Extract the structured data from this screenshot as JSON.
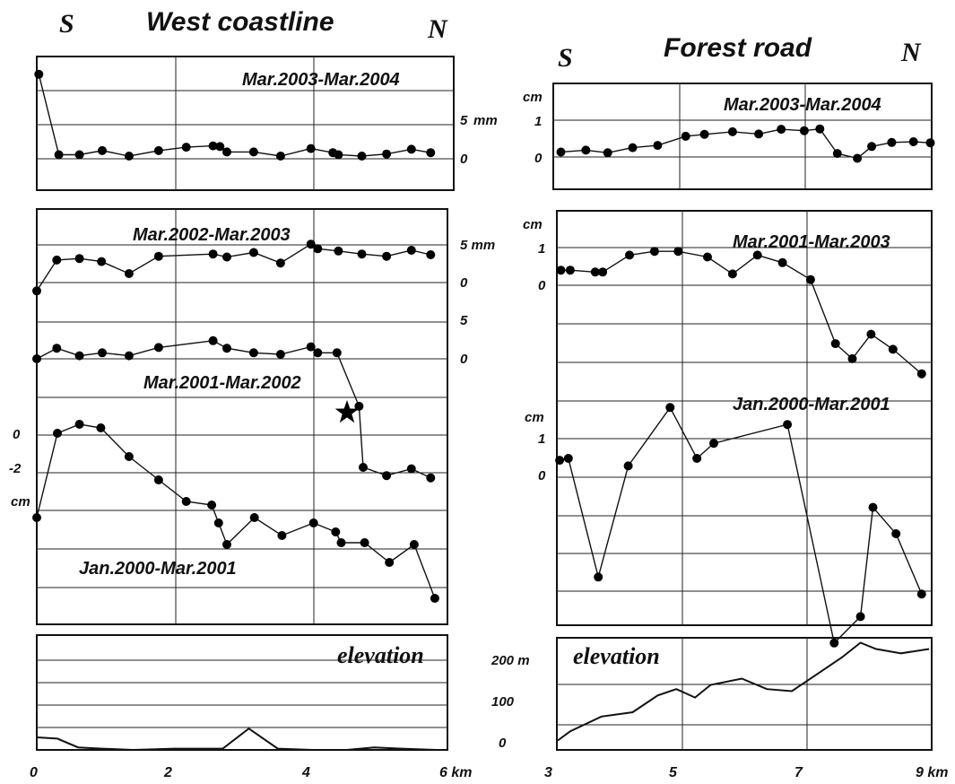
{
  "panels": {
    "left_title": "West coastline",
    "right_title": "Forest road",
    "dir_s": "S",
    "dir_n": "N"
  },
  "left_ticks": {
    "top_5": "5",
    "top_unit": "mm",
    "top_0": "0",
    "s1_5": "5 mm",
    "s1_0": "0",
    "s2_5": "5",
    "s2_0": "0",
    "s3_0": "0",
    "s3_m2": "-2",
    "s3_unit": "cm"
  },
  "right_ticks": {
    "top_unit": "cm",
    "top_1": "1",
    "top_0": "0",
    "m_unit": "cm",
    "m_1": "1",
    "m_0": "0",
    "l_unit": "cm",
    "l_1": "1",
    "l_0": "0",
    "e_200": "200 m",
    "e_100": "100",
    "e_0": "0"
  },
  "x_axes": {
    "left": [
      "0",
      "2",
      "4",
      "6 km"
    ],
    "right": [
      "3",
      "5",
      "7",
      "9 km"
    ]
  },
  "chart_data": [
    {
      "type": "line",
      "title": "West coastline",
      "xlabel": "km",
      "xlim": [
        0,
        6
      ],
      "subplots": [
        {
          "label": "Mar.2003-Mar.2004",
          "ylabel": "mm",
          "y_ticks": [
            "5",
            "0"
          ],
          "x": [
            0.03,
            0.32,
            0.62,
            0.95,
            1.34,
            1.77,
            2.17,
            2.56,
            2.66,
            2.76,
            3.15,
            3.54,
            3.98,
            4.3,
            4.38,
            4.72,
            5.08,
            5.44,
            5.72
          ],
          "y": [
            12.0,
            0.2,
            0.2,
            0.8,
            0.0,
            0.8,
            1.3,
            1.5,
            1.4,
            0.6,
            0.6,
            0.0,
            1.1,
            0.5,
            0.2,
            0.0,
            0.3,
            1.0,
            0.5
          ]
        },
        {
          "label": "Mar.2002-Mar.2003",
          "ylabel": "mm",
          "y_ticks": [
            "5",
            "0"
          ],
          "x": [
            0.0,
            0.29,
            0.62,
            0.94,
            1.34,
            1.77,
            2.56,
            2.76,
            3.15,
            3.54,
            3.98,
            4.08,
            4.38,
            4.72,
            5.08,
            5.44,
            5.72
          ],
          "y": [
            -2.3,
            1.8,
            2.0,
            1.6,
            0.0,
            2.3,
            2.6,
            2.2,
            2.8,
            1.4,
            3.9,
            3.3,
            3.0,
            2.6,
            2.3,
            3.1,
            2.5
          ]
        },
        {
          "label": "Mar.2001-Mar.2002",
          "ylabel": "mm",
          "y_ticks": [
            "5",
            "0"
          ],
          "x": [
            0.0,
            0.29,
            0.62,
            0.95,
            1.34,
            1.77,
            2.56,
            2.76,
            3.15,
            3.54,
            3.98,
            4.08,
            4.36,
            4.68,
            4.74,
            5.08,
            5.44,
            5.72
          ],
          "y": [
            0.0,
            1.4,
            0.4,
            0.8,
            0.4,
            1.5,
            2.4,
            1.4,
            0.8,
            0.6,
            1.6,
            0.8,
            0.8,
            -6.3,
            -14.4,
            -15.5,
            -14.6,
            -15.8
          ],
          "annotation": "star marker at about 4.55 km"
        },
        {
          "label": "Jan.2000-Mar.2001",
          "ylabel": "cm",
          "y_ticks": [
            "0",
            "-2"
          ],
          "x": [
            0.0,
            0.3,
            0.62,
            0.93,
            1.34,
            1.77,
            2.17,
            2.54,
            2.64,
            2.76,
            3.16,
            3.56,
            4.02,
            4.34,
            4.42,
            4.76,
            5.12,
            5.48,
            5.78
          ],
          "y": [
            -4.6,
            0.1,
            0.6,
            0.4,
            -1.2,
            -2.5,
            -3.7,
            -3.9,
            -4.9,
            -6.1,
            -4.6,
            -5.6,
            -4.9,
            -5.4,
            -6.0,
            -6.0,
            -7.1,
            -6.1,
            -9.1
          ]
        },
        {
          "label": "elevation",
          "x": [
            0.0,
            0.3,
            0.6,
            0.95,
            1.4,
            2.0,
            2.7,
            3.08,
            3.5,
            4.0,
            4.5,
            4.9,
            5.3,
            5.8
          ],
          "y": [
            10,
            9,
            2,
            1,
            0,
            1,
            1,
            17,
            1,
            0,
            0,
            2,
            1,
            0
          ]
        }
      ]
    },
    {
      "type": "line",
      "title": "Forest road",
      "xlabel": "km",
      "xlim": [
        3,
        9
      ],
      "subplots": [
        {
          "label": "Mar.2003-Mar.2004",
          "ylabel": "cm",
          "y_ticks": [
            "1",
            "0"
          ],
          "x": [
            3.05,
            3.45,
            3.8,
            4.2,
            4.6,
            5.05,
            5.35,
            5.8,
            6.22,
            6.58,
            6.95,
            7.2,
            7.48,
            7.8,
            8.03,
            8.35,
            8.7,
            8.97
          ],
          "y": [
            0.11,
            0.16,
            0.09,
            0.23,
            0.29,
            0.54,
            0.59,
            0.66,
            0.6,
            0.73,
            0.69,
            0.74,
            0.07,
            -0.06,
            0.26,
            0.37,
            0.39,
            0.36
          ]
        },
        {
          "label": "Mar.2001-Mar.2003",
          "ylabel": "cm",
          "y_ticks": [
            "1",
            "0"
          ],
          "x": [
            3.05,
            3.2,
            3.6,
            3.72,
            4.15,
            4.55,
            4.93,
            5.4,
            5.8,
            6.2,
            6.6,
            7.05,
            7.45,
            7.72,
            8.02,
            8.37,
            8.83
          ],
          "y": [
            0.4,
            0.4,
            0.35,
            0.35,
            0.8,
            0.9,
            0.9,
            0.75,
            0.3,
            0.8,
            0.6,
            0.15,
            -1.55,
            -1.95,
            -1.3,
            -1.7,
            -2.35
          ]
        },
        {
          "label": "Jan.2000-Mar.2001",
          "ylabel": "cm",
          "y_ticks": [
            "1",
            "0"
          ],
          "x": [
            3.03,
            3.17,
            3.65,
            4.13,
            4.8,
            5.23,
            5.5,
            6.68,
            7.43,
            7.85,
            8.05,
            8.42,
            8.83
          ],
          "y": [
            0.45,
            0.5,
            -2.65,
            0.3,
            1.85,
            0.5,
            0.9,
            1.4,
            -4.4,
            -3.7,
            -0.8,
            -1.5,
            -3.1
          ]
        },
        {
          "label": "elevation",
          "ylabel": "m",
          "y_ticks": [
            "200 m",
            "100",
            "0"
          ],
          "x": [
            3.0,
            3.2,
            3.7,
            4.2,
            4.6,
            4.9,
            5.2,
            5.45,
            5.95,
            6.35,
            6.75,
            7.15,
            7.55,
            7.85,
            8.1,
            8.5,
            8.95
          ],
          "y": [
            18,
            40,
            75,
            85,
            125,
            140,
            120,
            150,
            165,
            140,
            135,
            175,
            215,
            250,
            235,
            225,
            235
          ]
        }
      ]
    }
  ]
}
